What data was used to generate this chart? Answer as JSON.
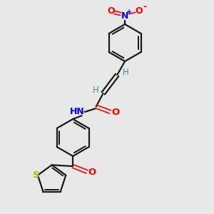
{
  "bg_color": "#e8e8e8",
  "bond_color": "#1a1a1a",
  "N_color": "#0000ff",
  "O_color": "#ff0000",
  "S_color": "#b8b800",
  "H_color": "#4a8a8a",
  "figsize": [
    3.0,
    3.0
  ],
  "dpi": 100,
  "xlim": [
    0,
    10
  ],
  "ylim": [
    0,
    10
  ]
}
